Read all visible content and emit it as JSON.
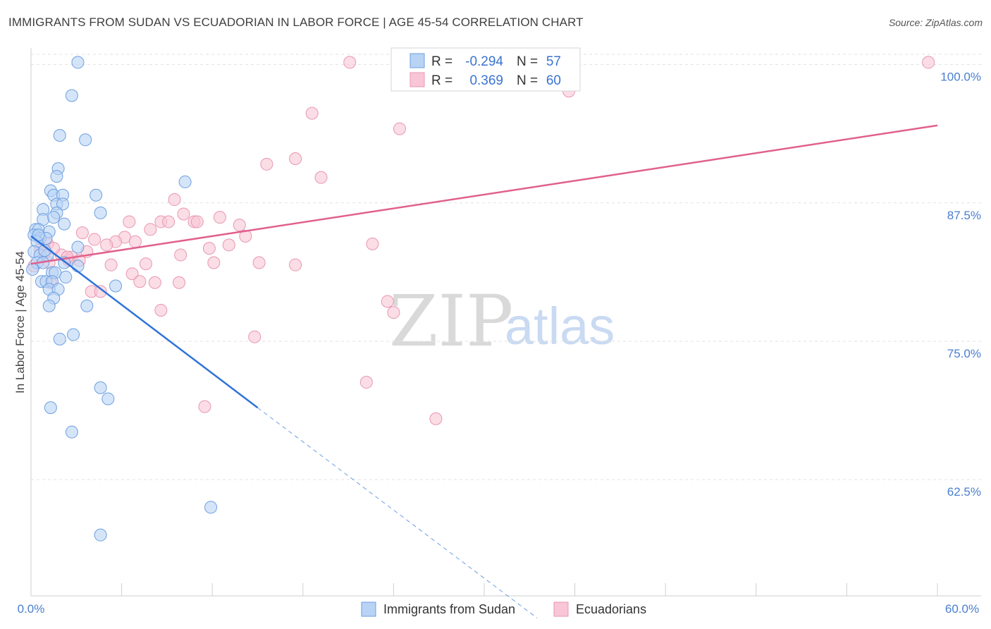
{
  "title": "IMMIGRANTS FROM SUDAN VS ECUADORIAN IN LABOR FORCE | AGE 45-54 CORRELATION CHART",
  "source": "Source: ZipAtlas.com",
  "watermark": {
    "zip": "ZIP",
    "atlas": "atlas"
  },
  "colors": {
    "blue_fill": "#b9d3f5",
    "blue_stroke": "#6d9fe0",
    "blue_line": "#2f73d8",
    "pink_fill": "#f8c6d6",
    "pink_stroke": "#e896b1",
    "pink_line": "#e0608e",
    "grid": "#e2e2e2",
    "axis_text": "#4a7fd0"
  },
  "legend": {
    "rows": [
      {
        "r_label": "R =",
        "r_value": "-0.294",
        "n_label": "N =",
        "n_value": "57"
      },
      {
        "r_label": "R =",
        "r_value": "0.369",
        "n_label": "N =",
        "n_value": "60"
      }
    ]
  },
  "bottom_legend": [
    "Immigrants from Sudan",
    "Ecuadorians"
  ],
  "chart_data": {
    "type": "scatter",
    "title": "IMMIGRANTS FROM SUDAN VS ECUADORIAN IN LABOR FORCE | AGE 45-54 CORRELATION CHART",
    "xlabel": "",
    "ylabel": "In Labor Force | Age 45-54",
    "xlim": [
      0,
      60
    ],
    "ylim": [
      52,
      101.5
    ],
    "x_tick_labels": [
      "0.0%",
      "60.0%"
    ],
    "y_ticks": [
      62.5,
      75.0,
      87.5,
      100.0
    ],
    "y_tick_labels": [
      "62.5%",
      "75.0%",
      "87.5%",
      "100.0%"
    ],
    "series": [
      {
        "name": "Immigrants from Sudan",
        "points": [
          [
            3.1,
            100.2
          ],
          [
            2.7,
            97.2
          ],
          [
            1.9,
            93.6
          ],
          [
            3.6,
            93.2
          ],
          [
            1.8,
            90.6
          ],
          [
            1.7,
            89.9
          ],
          [
            10.2,
            89.4
          ],
          [
            1.3,
            88.6
          ],
          [
            1.5,
            88.2
          ],
          [
            2.1,
            88.2
          ],
          [
            4.3,
            88.2
          ],
          [
            1.7,
            87.4
          ],
          [
            2.1,
            87.4
          ],
          [
            0.8,
            86.9
          ],
          [
            1.7,
            86.6
          ],
          [
            4.6,
            86.6
          ],
          [
            0.8,
            86.0
          ],
          [
            1.5,
            86.2
          ],
          [
            2.2,
            85.6
          ],
          [
            0.3,
            85.1
          ],
          [
            0.5,
            85.1
          ],
          [
            1.2,
            84.9
          ],
          [
            0.2,
            84.6
          ],
          [
            0.6,
            84.3
          ],
          [
            1.0,
            84.3
          ],
          [
            0.4,
            84.0
          ],
          [
            3.1,
            83.5
          ],
          [
            0.2,
            83.1
          ],
          [
            0.6,
            82.8
          ],
          [
            1.1,
            82.8
          ],
          [
            0.4,
            82.1
          ],
          [
            0.8,
            82.1
          ],
          [
            2.2,
            82.1
          ],
          [
            3.1,
            81.8
          ],
          [
            0.1,
            81.5
          ],
          [
            1.4,
            81.2
          ],
          [
            1.6,
            81.2
          ],
          [
            2.3,
            80.8
          ],
          [
            0.7,
            80.4
          ],
          [
            1.0,
            80.4
          ],
          [
            1.4,
            80.4
          ],
          [
            5.6,
            80.0
          ],
          [
            1.2,
            79.7
          ],
          [
            1.8,
            79.7
          ],
          [
            1.5,
            78.9
          ],
          [
            1.2,
            78.2
          ],
          [
            3.7,
            78.2
          ],
          [
            2.8,
            75.6
          ],
          [
            1.9,
            75.2
          ],
          [
            4.6,
            70.8
          ],
          [
            5.1,
            69.8
          ],
          [
            1.3,
            69.0
          ],
          [
            2.7,
            66.8
          ],
          [
            11.9,
            60.0
          ],
          [
            4.6,
            57.5
          ],
          [
            0.5,
            84.6
          ],
          [
            0.9,
            83.2
          ]
        ],
        "trend": {
          "x": [
            0,
            15.0
          ],
          "y": [
            84.5,
            69.0
          ]
        },
        "trend_dashed": {
          "x": [
            15.0,
            33.5
          ],
          "y": [
            69.0,
            50.0
          ]
        }
      },
      {
        "name": "Ecuadorians",
        "points": [
          [
            21.1,
            100.2
          ],
          [
            59.4,
            100.2
          ],
          [
            35.6,
            97.6
          ],
          [
            18.6,
            95.6
          ],
          [
            24.4,
            94.2
          ],
          [
            15.6,
            91.0
          ],
          [
            17.5,
            91.5
          ],
          [
            19.2,
            89.8
          ],
          [
            9.5,
            87.8
          ],
          [
            10.1,
            86.5
          ],
          [
            12.5,
            86.2
          ],
          [
            6.5,
            85.8
          ],
          [
            8.6,
            85.8
          ],
          [
            9.1,
            85.8
          ],
          [
            10.8,
            85.8
          ],
          [
            11.0,
            85.8
          ],
          [
            13.8,
            85.5
          ],
          [
            7.9,
            85.1
          ],
          [
            3.4,
            84.8
          ],
          [
            6.2,
            84.4
          ],
          [
            14.2,
            84.5
          ],
          [
            4.2,
            84.2
          ],
          [
            5.6,
            84.0
          ],
          [
            6.9,
            84.0
          ],
          [
            5.0,
            83.7
          ],
          [
            11.8,
            83.4
          ],
          [
            13.1,
            83.7
          ],
          [
            22.6,
            83.8
          ],
          [
            1.1,
            83.8
          ],
          [
            3.7,
            83.1
          ],
          [
            0.9,
            83.0
          ],
          [
            2.0,
            82.8
          ],
          [
            2.7,
            82.6
          ],
          [
            9.9,
            82.8
          ],
          [
            3.2,
            82.3
          ],
          [
            2.5,
            82.3
          ],
          [
            1.2,
            82.1
          ],
          [
            7.6,
            82.0
          ],
          [
            5.3,
            81.9
          ],
          [
            12.1,
            82.1
          ],
          [
            15.1,
            82.1
          ],
          [
            17.5,
            81.9
          ],
          [
            0.2,
            81.8
          ],
          [
            6.7,
            81.1
          ],
          [
            7.2,
            80.4
          ],
          [
            8.2,
            80.3
          ],
          [
            9.8,
            80.3
          ],
          [
            1.3,
            80.3
          ],
          [
            4.0,
            79.5
          ],
          [
            4.6,
            79.5
          ],
          [
            23.6,
            78.6
          ],
          [
            8.6,
            77.8
          ],
          [
            24.0,
            77.6
          ],
          [
            14.8,
            75.4
          ],
          [
            22.2,
            71.3
          ],
          [
            11.5,
            69.1
          ],
          [
            26.8,
            68.0
          ],
          [
            0.6,
            83.3
          ],
          [
            2.4,
            82.6
          ],
          [
            1.5,
            83.4
          ]
        ],
        "trend": {
          "x": [
            0,
            60
          ],
          "y": [
            82.0,
            94.5
          ]
        }
      }
    ]
  }
}
